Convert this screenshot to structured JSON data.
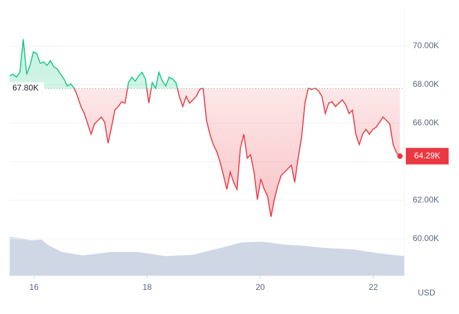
{
  "chart_data": {
    "type": "line",
    "x": [
      15.57,
      15.63,
      15.69,
      15.75,
      15.81,
      15.87,
      15.93,
      15.99,
      16.05,
      16.11,
      16.17,
      16.23,
      16.29,
      16.35,
      16.41,
      16.47,
      16.53,
      16.59,
      16.65,
      16.71,
      16.77,
      16.83,
      16.89,
      16.95,
      17.01,
      17.07,
      17.13,
      17.19,
      17.25,
      17.31,
      17.37,
      17.43,
      17.49,
      17.55,
      17.61,
      17.67,
      17.73,
      17.79,
      17.85,
      17.91,
      17.97,
      18.03,
      18.09,
      18.15,
      18.21,
      18.27,
      18.33,
      18.39,
      18.45,
      18.51,
      18.57,
      18.63,
      18.69,
      18.75,
      18.81,
      18.87,
      18.93,
      18.99,
      19.05,
      19.11,
      19.17,
      19.23,
      19.29,
      19.35,
      19.41,
      19.47,
      19.53,
      19.59,
      19.65,
      19.71,
      19.77,
      19.83,
      19.89,
      19.95,
      20.01,
      20.07,
      20.13,
      20.19,
      20.25,
      20.31,
      20.37,
      20.43,
      20.49,
      20.55,
      20.61,
      20.67,
      20.73,
      20.79,
      20.85,
      20.91,
      20.97,
      21.03,
      21.09,
      21.15,
      21.21,
      21.27,
      21.33,
      21.39,
      21.45,
      21.51,
      21.57,
      21.63,
      21.69,
      21.75,
      21.81,
      21.87,
      21.93,
      21.99,
      22.05,
      22.11,
      22.17,
      22.23,
      22.29,
      22.35,
      22.41,
      22.47
    ],
    "values": [
      68460,
      68540,
      68390,
      68640,
      70360,
      68540,
      69000,
      69710,
      69610,
      69110,
      69180,
      69000,
      69250,
      68930,
      68820,
      68540,
      68290,
      67930,
      68040,
      67820,
      67390,
      66860,
      66500,
      65960,
      65430,
      65960,
      66140,
      66320,
      66040,
      64960,
      65790,
      66680,
      66860,
      67110,
      67040,
      68110,
      68390,
      68180,
      68460,
      68640,
      68290,
      67040,
      68110,
      67820,
      68640,
      68180,
      67930,
      68390,
      68290,
      68110,
      67390,
      66860,
      67390,
      67040,
      67210,
      67390,
      67750,
      67820,
      66140,
      65430,
      64890,
      64540,
      64000,
      63290,
      62570,
      63460,
      62930,
      62570,
      64710,
      65430,
      64180,
      64360,
      63460,
      62040,
      63110,
      62570,
      62210,
      61140,
      62040,
      62750,
      63290,
      63460,
      63640,
      63820,
      62930,
      64180,
      65250,
      67040,
      67820,
      67750,
      67820,
      67680,
      67390,
      66500,
      67040,
      67110,
      66860,
      67040,
      67210,
      66960,
      66500,
      66680,
      65430,
      64890,
      65430,
      65680,
      65430,
      65680,
      65790,
      66040,
      66320,
      66140,
      65960,
      64890,
      64460,
      64290
    ],
    "up_color": "#16c784",
    "down_color": "#ea3943",
    "baseline": {
      "value": 67800,
      "label": "67.80K"
    },
    "last_price": {
      "value": 64290,
      "label": "64.29K"
    },
    "xlim": [
      15.57,
      22.55
    ],
    "xticks": [
      16,
      18,
      20,
      22
    ],
    "ylim": [
      58100,
      72000
    ],
    "yticks": [
      {
        "value": 60000,
        "label": "60.00K"
      },
      {
        "value": 62000,
        "label": "62.00K"
      },
      {
        "value": 64000,
        "label": "64.00K"
      },
      {
        "value": 66000,
        "label": "66.00K"
      },
      {
        "value": 68000,
        "label": "68.00K"
      },
      {
        "value": 70000,
        "label": "70.00K"
      }
    ],
    "grid": true,
    "currency": "USD"
  }
}
